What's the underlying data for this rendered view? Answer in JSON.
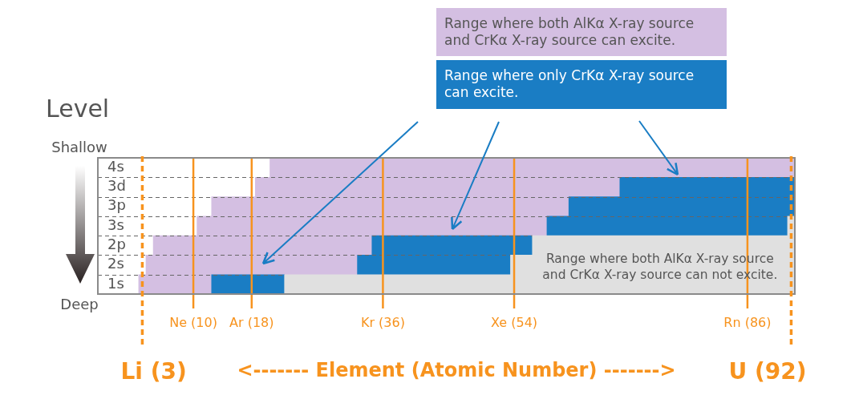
{
  "chart_data": {
    "type": "bar",
    "orientation": "horizontal",
    "ylabel": "Level",
    "xlabel": "<------- Element (Atomic Number) ------->",
    "categories": [
      "4s",
      "3d",
      "3p",
      "3s",
      "2p",
      "2s",
      "1s"
    ],
    "series": [
      {
        "name": "Range where both AlKα X-ray source and CrKα X-ray source can excite.",
        "color": "#d4bfe2",
        "base": [
          20.5,
          18.5,
          12.5,
          10.5,
          4.5,
          3.5,
          2.5
        ],
        "values": [
          72,
          50,
          49,
          48,
          30,
          29,
          10
        ]
      },
      {
        "name": "Range where only CrKα X-ray source can excite.",
        "color": "#1a7dc4",
        "base": [
          null,
          68.5,
          61.5,
          58.5,
          34.5,
          32.5,
          12.5
        ],
        "values": [
          null,
          24,
          31,
          33,
          22,
          21,
          10
        ]
      },
      {
        "color": "#e0e0e0",
        "base": [
          null,
          null,
          null,
          91.5,
          56.5,
          53.5,
          22.5
        ],
        "values": [
          null,
          null,
          null,
          1,
          36,
          39,
          70
        ]
      }
    ],
    "xlim": [
      -3.1,
      92.5
    ],
    "xticks": [
      {
        "value": 10,
        "label": "Ne (10)"
      },
      {
        "value": 18,
        "label": "Ar (18)"
      },
      {
        "value": 36,
        "label": "Kr (36)"
      },
      {
        "value": 54,
        "label": "Xe (54)"
      },
      {
        "value": 86,
        "label": "Rn (86)"
      }
    ],
    "ref_lines": [
      {
        "axis": "x",
        "value": 3,
        "label": "Li (3)",
        "color": "#f7931e",
        "line_style": "dashed"
      },
      {
        "axis": "x",
        "value": 92,
        "label": "U (92)",
        "color": "#f7931e",
        "line_style": "dashed"
      }
    ],
    "annotations": [
      "Shallow",
      "Deep",
      {
        "text": "Range where both AlKα X-ray source and CrKα X-ray source can not excite.",
        "x": 74,
        "y": "2s"
      }
    ],
    "grid": true,
    "legend": "top"
  }
}
